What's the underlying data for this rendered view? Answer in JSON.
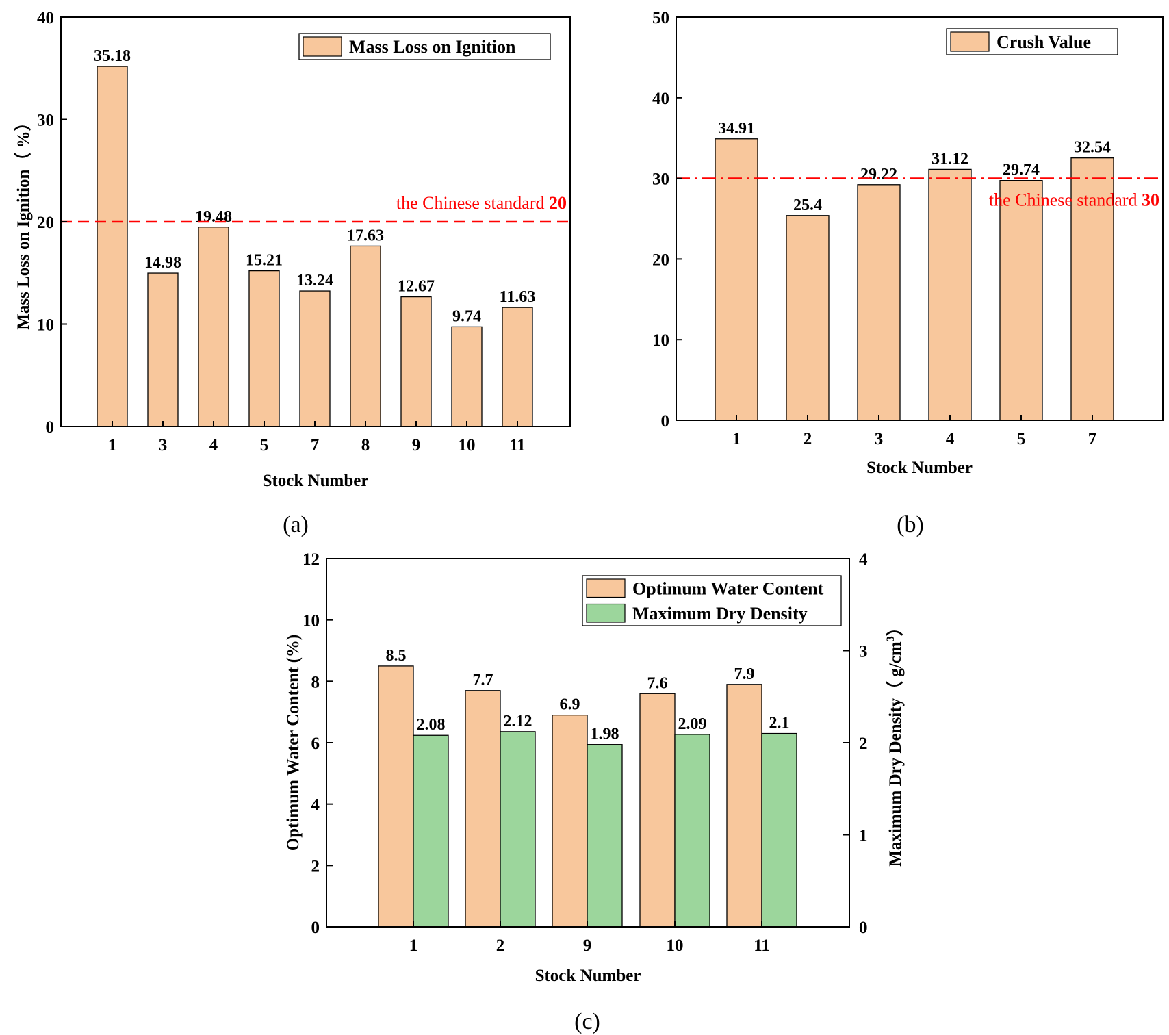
{
  "chart_data": [
    {
      "id": "a",
      "type": "bar",
      "panel_label": "(a)",
      "categories": [
        "1",
        "3",
        "4",
        "5",
        "7",
        "8",
        "9",
        "10",
        "11"
      ],
      "series": [
        {
          "name": "Mass Loss on Ignition",
          "color": "#f8c79c",
          "values": [
            35.18,
            14.98,
            19.48,
            15.21,
            13.24,
            17.63,
            12.67,
            9.74,
            11.63
          ],
          "labels": [
            "35.18",
            "14.98",
            "19.48",
            "15.21",
            "13.24",
            "17.63",
            "12.67",
            "9.74",
            "11.63"
          ]
        }
      ],
      "xlabel": "Stock Number",
      "ylabel": "Mass Loss on Ignition（ %）",
      "ylim": [
        0,
        40
      ],
      "yticks": [
        "0",
        "10",
        "20",
        "30",
        "40"
      ],
      "legend_position": "top-right",
      "reference_line": {
        "value": 20,
        "style": "dashed",
        "color": "#ff0000",
        "text": "the Chinese standard",
        "number": "20"
      }
    },
    {
      "id": "b",
      "type": "bar",
      "panel_label": "(b)",
      "categories": [
        "1",
        "2",
        "3",
        "4",
        "5",
        "7"
      ],
      "series": [
        {
          "name": "Crush Value",
          "color": "#f8c79c",
          "values": [
            34.91,
            25.4,
            29.22,
            31.12,
            29.74,
            32.54
          ],
          "labels": [
            "34.91",
            "25.4",
            "29.22",
            "31.12",
            "29.74",
            "32.54"
          ]
        }
      ],
      "xlabel": "Stock Number",
      "ylabel": "",
      "ylim": [
        0,
        50
      ],
      "yticks": [
        "0",
        "10",
        "20",
        "30",
        "40",
        "50"
      ],
      "legend_position": "top-right",
      "reference_line": {
        "value": 30,
        "style": "dash-dot",
        "color": "#ff0000",
        "text": "the Chinese standard",
        "number": "30"
      }
    },
    {
      "id": "c",
      "type": "bar",
      "panel_label": "(c)",
      "categories": [
        "1",
        "2",
        "9",
        "10",
        "11"
      ],
      "series": [
        {
          "name": "Optimum Water Content",
          "axis": "left",
          "color": "#f8c79c",
          "values": [
            8.5,
            7.7,
            6.9,
            7.6,
            7.9
          ],
          "labels": [
            "8.5",
            "7.7",
            "6.9",
            "7.6",
            "7.9"
          ]
        },
        {
          "name": "Maximum Dry Density",
          "axis": "right",
          "color": "#9cd69c",
          "values": [
            2.08,
            2.12,
            1.98,
            2.09,
            2.1
          ],
          "labels": [
            "2.08",
            "2.12",
            "1.98",
            "2.09",
            "2.1"
          ]
        }
      ],
      "xlabel": "Stock Number",
      "ylabel": "Optimum Water Content (%)",
      "ylabel_right": "Maximum Dry Density（ g/cm",
      "ylabel_right_sup": "3",
      "ylim": [
        0,
        12
      ],
      "ylim_right": [
        0,
        4
      ],
      "yticks": [
        "0",
        "2",
        "4",
        "6",
        "8",
        "10",
        "12"
      ],
      "yticks_right": [
        "0",
        "1",
        "2",
        "3",
        "4"
      ],
      "legend_position": "top-right"
    }
  ]
}
